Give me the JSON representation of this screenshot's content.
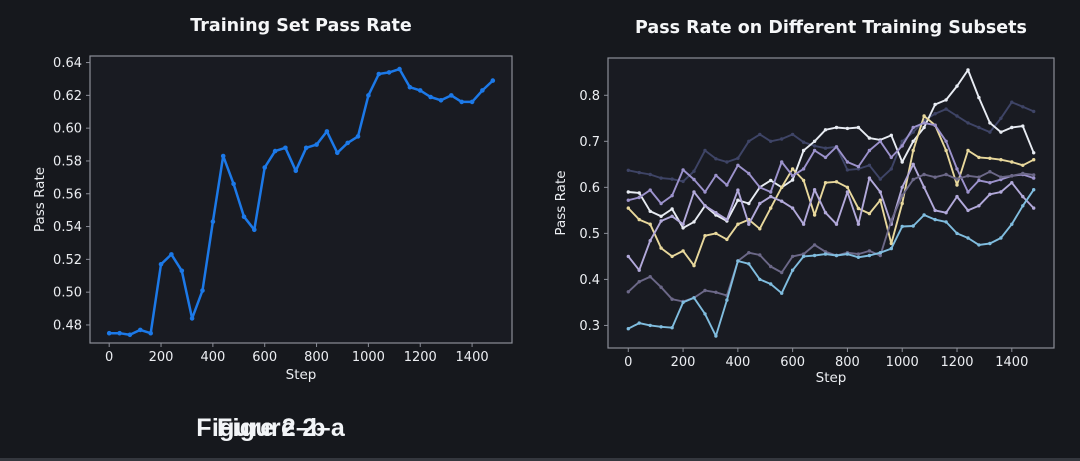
{
  "window": {
    "background": "#16181d",
    "plot_background": "#191b22",
    "spine_color": "#8b8e98",
    "text_color": "#eceef2",
    "bottom_strip_color": "#34373e"
  },
  "captions": [
    "Figure 2–a",
    "Figure 2–b"
  ],
  "chart_data": [
    {
      "type": "line",
      "title": "Training Set Pass Rate",
      "xlabel": "Step",
      "ylabel": "Pass Rate",
      "x": [
        0,
        40,
        80,
        120,
        160,
        200,
        240,
        280,
        320,
        360,
        400,
        440,
        480,
        520,
        560,
        600,
        640,
        680,
        720,
        760,
        800,
        840,
        880,
        920,
        960,
        1000,
        1040,
        1080,
        1120,
        1160,
        1200,
        1240,
        1280,
        1320,
        1360,
        1400,
        1440,
        1480
      ],
      "xticks": [
        0,
        200,
        400,
        600,
        800,
        1000,
        1200,
        1400
      ],
      "yticks": [
        0.48,
        0.5,
        0.52,
        0.54,
        0.56,
        0.58,
        0.6,
        0.62,
        0.64
      ],
      "ytick_decimals": 2,
      "xlim": [
        -74,
        1554
      ],
      "ylim": [
        0.469,
        0.644
      ],
      "grid": false,
      "legend": "none",
      "series": [
        {
          "name": "training-set-pass-rate",
          "color": "#1c79e8",
          "values": [
            0.475,
            0.475,
            0.474,
            0.477,
            0.475,
            0.517,
            0.523,
            0.513,
            0.484,
            0.501,
            0.543,
            0.583,
            0.566,
            0.546,
            0.538,
            0.576,
            0.586,
            0.588,
            0.574,
            0.588,
            0.59,
            0.598,
            0.585,
            0.591,
            0.595,
            0.62,
            0.633,
            0.634,
            0.636,
            0.625,
            0.623,
            0.619,
            0.617,
            0.62,
            0.616,
            0.616,
            0.623,
            0.629
          ]
        }
      ]
    },
    {
      "type": "line",
      "title": "Pass Rate on Different Training Subsets",
      "xlabel": "Step",
      "ylabel": "Pass Rate",
      "x": [
        0,
        40,
        80,
        120,
        160,
        200,
        240,
        280,
        320,
        360,
        400,
        440,
        480,
        520,
        560,
        600,
        640,
        680,
        720,
        760,
        800,
        840,
        880,
        920,
        960,
        1000,
        1040,
        1080,
        1120,
        1160,
        1200,
        1240,
        1280,
        1320,
        1360,
        1400,
        1440,
        1480
      ],
      "xticks": [
        0,
        200,
        400,
        600,
        800,
        1000,
        1200,
        1400
      ],
      "yticks": [
        0.3,
        0.4,
        0.5,
        0.6,
        0.7,
        0.8
      ],
      "ytick_decimals": 1,
      "xlim": [
        -74,
        1554
      ],
      "ylim": [
        0.251,
        0.881
      ],
      "grid": false,
      "legend": "none",
      "series": [
        {
          "name": "subset-navy",
          "color": "#3e4466",
          "values": [
            0.637,
            0.632,
            0.628,
            0.62,
            0.618,
            0.613,
            0.635,
            0.68,
            0.662,
            0.655,
            0.663,
            0.7,
            0.715,
            0.7,
            0.705,
            0.715,
            0.698,
            0.69,
            0.685,
            0.688,
            0.638,
            0.64,
            0.648,
            0.618,
            0.64,
            0.7,
            0.72,
            0.745,
            0.76,
            0.77,
            0.755,
            0.74,
            0.73,
            0.72,
            0.75,
            0.785,
            0.775,
            0.765
          ]
        },
        {
          "name": "subset-ivory",
          "color": "#e8ecf3",
          "values": [
            0.59,
            0.588,
            0.548,
            0.537,
            0.553,
            0.512,
            0.525,
            0.56,
            0.54,
            0.527,
            0.572,
            0.565,
            0.6,
            0.615,
            0.6,
            0.616,
            0.68,
            0.7,
            0.725,
            0.73,
            0.728,
            0.73,
            0.707,
            0.703,
            0.713,
            0.655,
            0.7,
            0.73,
            0.78,
            0.79,
            0.82,
            0.855,
            0.795,
            0.74,
            0.72,
            0.73,
            0.733,
            0.675
          ]
        },
        {
          "name": "subset-yellow",
          "color": "#e8d89c",
          "values": [
            0.555,
            0.53,
            0.52,
            0.468,
            0.45,
            0.462,
            0.43,
            0.495,
            0.5,
            0.487,
            0.52,
            0.53,
            0.51,
            0.555,
            0.6,
            0.64,
            0.615,
            0.54,
            0.61,
            0.612,
            0.6,
            0.554,
            0.543,
            0.572,
            0.478,
            0.565,
            0.68,
            0.755,
            0.735,
            0.68,
            0.605,
            0.68,
            0.665,
            0.663,
            0.66,
            0.655,
            0.648,
            0.66
          ]
        },
        {
          "name": "subset-periwinkle",
          "color": "#9c92cc",
          "values": [
            0.572,
            0.578,
            0.594,
            0.565,
            0.582,
            0.638,
            0.617,
            0.59,
            0.626,
            0.605,
            0.648,
            0.63,
            0.6,
            0.59,
            0.655,
            0.625,
            0.64,
            0.68,
            0.665,
            0.688,
            0.655,
            0.645,
            0.68,
            0.7,
            0.665,
            0.69,
            0.73,
            0.74,
            0.735,
            0.7,
            0.64,
            0.59,
            0.615,
            0.61,
            0.617,
            0.625,
            0.628,
            0.62
          ]
        },
        {
          "name": "subset-lavender",
          "color": "#b2a9da",
          "values": [
            0.45,
            0.42,
            0.484,
            0.527,
            0.537,
            0.52,
            0.59,
            0.56,
            0.545,
            0.53,
            0.594,
            0.52,
            0.565,
            0.58,
            0.57,
            0.555,
            0.52,
            0.595,
            0.545,
            0.52,
            0.59,
            0.52,
            0.62,
            0.59,
            0.52,
            0.6,
            0.65,
            0.6,
            0.55,
            0.545,
            0.58,
            0.55,
            0.56,
            0.585,
            0.59,
            0.61,
            0.58,
            0.555
          ]
        },
        {
          "name": "subset-slate",
          "color": "#6c6888",
          "values": [
            0.373,
            0.395,
            0.406,
            0.383,
            0.357,
            0.352,
            0.36,
            0.376,
            0.372,
            0.365,
            0.44,
            0.458,
            0.453,
            0.428,
            0.415,
            0.45,
            0.455,
            0.475,
            0.46,
            0.452,
            0.458,
            0.455,
            0.462,
            0.452,
            0.528,
            0.582,
            0.617,
            0.628,
            0.622,
            0.628,
            0.618,
            0.625,
            0.622,
            0.634,
            0.622,
            0.625,
            0.63,
            0.627
          ]
        },
        {
          "name": "subset-skyblue",
          "color": "#80bddf",
          "values": [
            0.293,
            0.305,
            0.3,
            0.297,
            0.295,
            0.35,
            0.36,
            0.325,
            0.277,
            0.355,
            0.44,
            0.434,
            0.4,
            0.39,
            0.37,
            0.42,
            0.45,
            0.452,
            0.455,
            0.452,
            0.455,
            0.448,
            0.452,
            0.458,
            0.467,
            0.515,
            0.516,
            0.54,
            0.53,
            0.525,
            0.5,
            0.49,
            0.475,
            0.478,
            0.49,
            0.52,
            0.56,
            0.595
          ]
        }
      ]
    }
  ]
}
